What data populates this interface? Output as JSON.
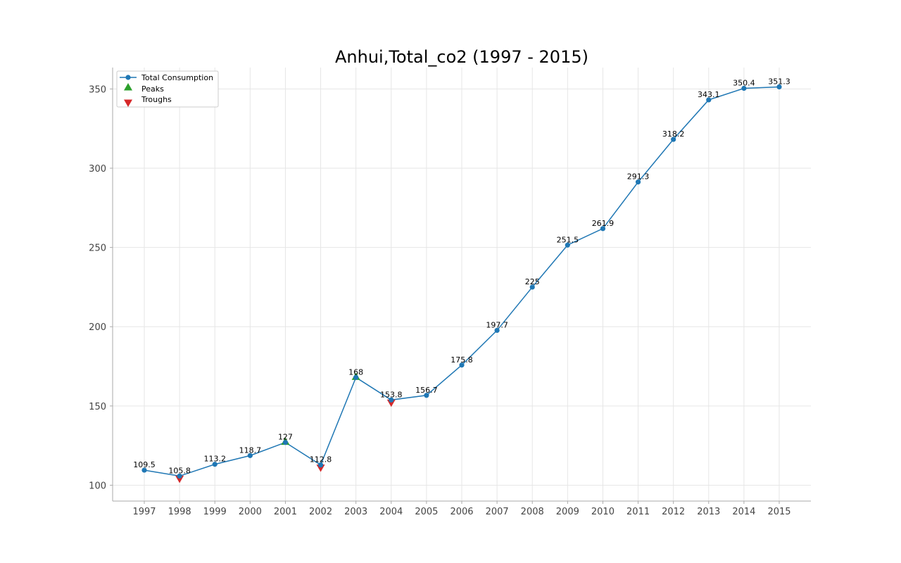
{
  "chart_data": {
    "type": "line",
    "title": "Anhui,Total_co2 (1997 - 2015)",
    "xlabel": "",
    "ylabel": "",
    "categories": [
      "1997",
      "1998",
      "1999",
      "2000",
      "2001",
      "2002",
      "2003",
      "2004",
      "2005",
      "2006",
      "2007",
      "2008",
      "2009",
      "2010",
      "2011",
      "2012",
      "2013",
      "2014",
      "2015"
    ],
    "series": [
      {
        "name": "Total Consumption",
        "color": "#1f77b4",
        "marker": "circle",
        "values": [
          109.5,
          105.8,
          113.2,
          118.7,
          127,
          112.8,
          168,
          153.8,
          156.7,
          175.8,
          197.7,
          225,
          251.5,
          261.9,
          291.3,
          318.2,
          343.1,
          350.4,
          351.3
        ],
        "labels": [
          "109.5",
          "105.8",
          "113.2",
          "118.7",
          "127",
          "112.8",
          "168",
          "153.8",
          "156.7",
          "175.8",
          "197.7",
          "225",
          "251.5",
          "261.9",
          "291.3",
          "318.2",
          "343.1",
          "350.4",
          "351.3"
        ]
      }
    ],
    "peaks": {
      "name": "Peaks",
      "color": "#2ca02c",
      "marker": "triangle-up",
      "categories": [
        "2001",
        "2003"
      ],
      "values": [
        127,
        168
      ]
    },
    "troughs": {
      "name": "Troughs",
      "color": "#d62728",
      "marker": "triangle-down",
      "categories": [
        "1998",
        "2002",
        "2004"
      ],
      "values": [
        105.8,
        112.8,
        153.8
      ]
    },
    "ylim": [
      90,
      363.5
    ],
    "yticks": [
      100,
      150,
      200,
      250,
      300,
      350
    ],
    "ytick_labels": [
      "100",
      "150",
      "200",
      "250",
      "300",
      "350"
    ],
    "grid": true,
    "legend": {
      "placement": "top-left",
      "entries": [
        "Total Consumption",
        "Peaks",
        "Troughs"
      ]
    }
  }
}
